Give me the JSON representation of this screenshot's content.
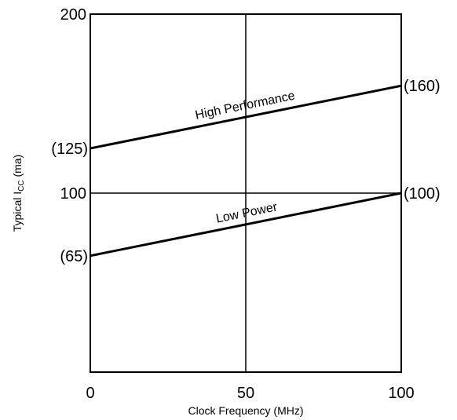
{
  "chart_data": {
    "type": "line",
    "xlabel": "Clock Frequency (MHz)",
    "ylabel_prefix": "Typical I",
    "ylabel_subscript": "CC",
    "ylabel_suffix": " (ma)",
    "xlim": [
      0,
      100
    ],
    "ylim": [
      0,
      200
    ],
    "x_ticks": [
      {
        "value": 0,
        "label": "0"
      },
      {
        "value": 50,
        "label": "50"
      },
      {
        "value": 100,
        "label": "100"
      }
    ],
    "y_ticks": [
      {
        "value": 100,
        "label": "100"
      },
      {
        "value": 200,
        "label": "200"
      }
    ],
    "gridlines": {
      "x": [
        50
      ],
      "y": [
        100
      ]
    },
    "series": [
      {
        "name": "High Performance",
        "x": [
          0,
          100
        ],
        "y": [
          125,
          160
        ],
        "start_label": "(125)",
        "end_label": "(160)"
      },
      {
        "name": "Low Power",
        "x": [
          0,
          100
        ],
        "y": [
          65,
          100
        ],
        "start_label": "(65)",
        "end_label": "(100)"
      }
    ]
  }
}
